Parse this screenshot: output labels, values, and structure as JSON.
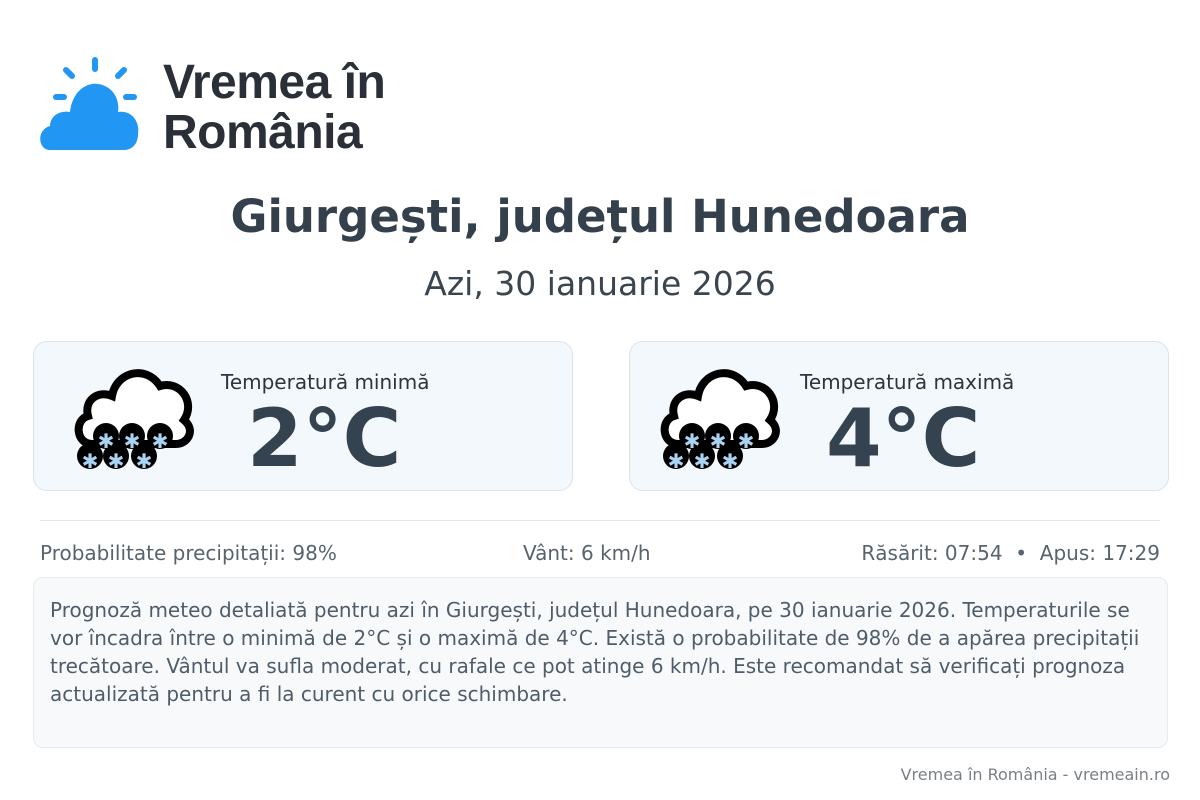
{
  "brand": {
    "name": "Vremea în România",
    "line1": "Vremea în",
    "line2": "România",
    "logo_color": "#2196f3"
  },
  "header": {
    "title": "Giurgești, județul Hunedoara",
    "subtitle": "Azi, 30 ianuarie 2026"
  },
  "cards": [
    {
      "label": "Temperatură minimă",
      "value": "2°C",
      "icon": "snow-cloud-icon"
    },
    {
      "label": "Temperatură maximă",
      "value": "4°C",
      "icon": "snow-cloud-icon"
    }
  ],
  "stats": {
    "precip": "Probabilitate precipitații: 98%",
    "wind": "Vânt: 6 km/h",
    "sun": "Răsărit: 07:54  •  Apus: 17:29"
  },
  "description": "Prognoză meteo detaliată pentru azi în Giurgești, județul Hunedoara, pe 30 ianuarie 2026. Temperaturile se vor încadra între o minimă de 2°C și o maximă de 4°C. Există o probabilitate de 98% de a apărea precipitații trecătoare. Vântul va sufla moderat, cu rafale ce pot atinge 6 km/h. Este recomandat să verificați prognoza actualizată pentru a fi la curent cu orice schimbare.",
  "footer": "Vremea în România - vremeain.ro"
}
